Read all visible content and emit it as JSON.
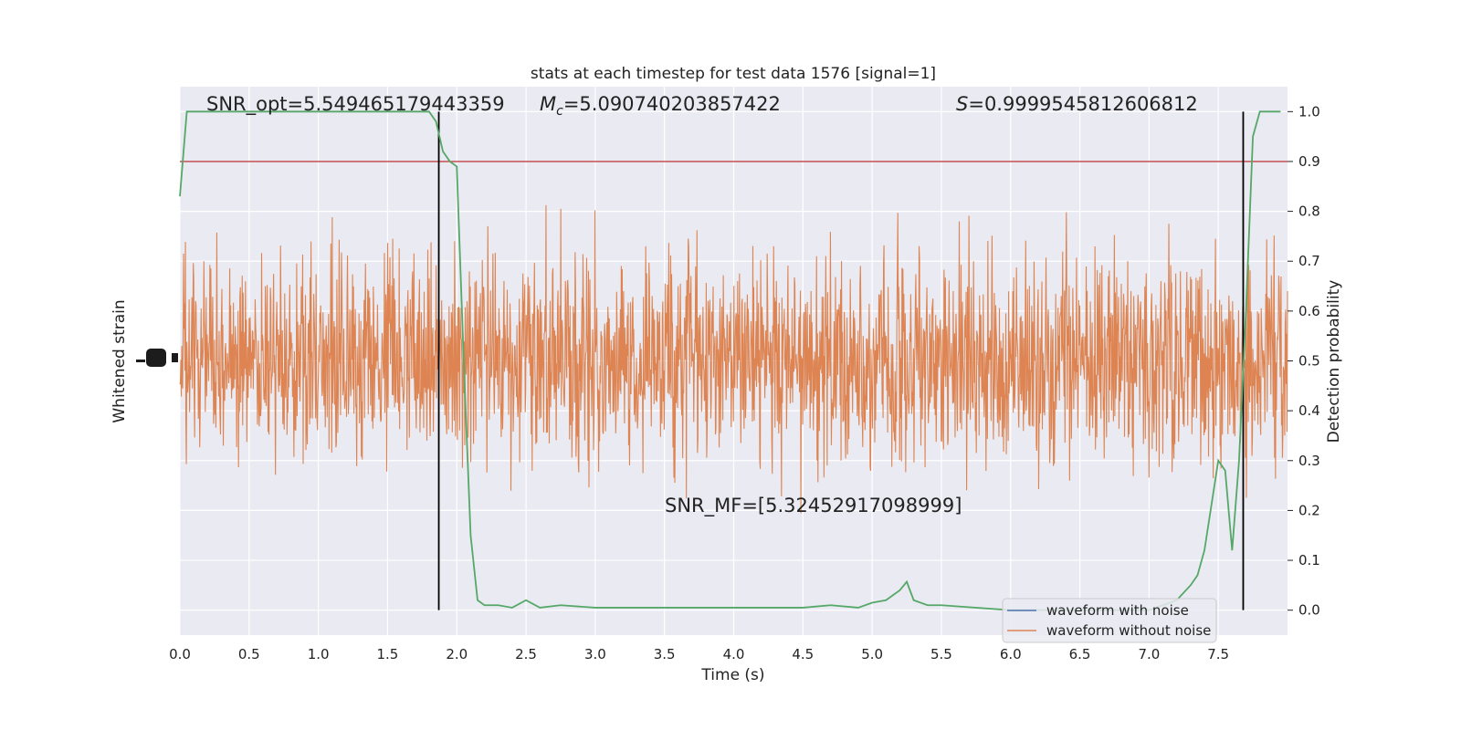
{
  "chart_data": {
    "type": "line",
    "title": "stats at each timestep for test data 1576 [signal=1]",
    "xlabel": "Time (s)",
    "ylabel_left": "Whitened strain",
    "ylabel_right": "Detection probability",
    "xlim": [
      0,
      8
    ],
    "ylim_right": [
      -0.05,
      1.05
    ],
    "x_ticks": [
      "0.0",
      "0.5",
      "1.0",
      "1.5",
      "2.0",
      "2.5",
      "3.0",
      "3.5",
      "4.0",
      "4.5",
      "5.0",
      "5.5",
      "6.0",
      "6.5",
      "7.0",
      "7.5"
    ],
    "y_ticks_right": [
      "0.0",
      "0.1",
      "0.2",
      "0.3",
      "0.4",
      "0.5",
      "0.6",
      "0.7",
      "0.8",
      "0.9",
      "1.0"
    ],
    "grid": true,
    "legend_position": "lower-right",
    "annotations": {
      "snr_opt": "SNR_opt=5.549465179443359",
      "mc_symbol": "M",
      "mc_sub": "c",
      "mc_value": "=5.090740203857422",
      "s_symbol": "S",
      "s_value": "=0.9999545812606812",
      "snr_mf": "SNR_MF=[5.32452917098999]"
    },
    "threshold": 0.9,
    "vertical_markers": [
      1.87,
      7.68
    ],
    "series": [
      {
        "name": "waveform with noise",
        "color": "#4c72b0"
      },
      {
        "name": "waveform without noise",
        "color": "#dd8452",
        "center": 0.5,
        "spread": 0.2
      },
      {
        "color": "#55a868",
        "x": [
          0.0,
          0.05,
          0.1,
          0.2,
          0.4,
          0.6,
          0.8,
          1.0,
          1.2,
          1.4,
          1.6,
          1.8,
          1.85,
          1.9,
          1.95,
          2.0,
          2.05,
          2.1,
          2.15,
          2.2,
          2.3,
          2.4,
          2.5,
          2.6,
          2.75,
          3.0,
          3.5,
          4.0,
          4.5,
          4.7,
          4.9,
          5.0,
          5.1,
          5.2,
          5.25,
          5.3,
          5.4,
          5.5,
          6.0,
          6.5,
          7.0,
          7.1,
          7.2,
          7.3,
          7.35,
          7.4,
          7.5,
          7.55,
          7.6,
          7.65,
          7.7,
          7.75,
          7.8,
          7.95
        ],
        "y": [
          0.83,
          1.0,
          1.0,
          1.0,
          1.0,
          1.0,
          1.0,
          1.0,
          1.0,
          1.0,
          1.0,
          1.0,
          0.98,
          0.92,
          0.9,
          0.89,
          0.5,
          0.15,
          0.02,
          0.01,
          0.01,
          0.005,
          0.02,
          0.005,
          0.01,
          0.005,
          0.005,
          0.005,
          0.005,
          0.01,
          0.005,
          0.015,
          0.02,
          0.04,
          0.057,
          0.02,
          0.01,
          0.01,
          0.0,
          0.0,
          0.0,
          0.01,
          0.02,
          0.05,
          0.07,
          0.12,
          0.3,
          0.28,
          0.12,
          0.3,
          0.6,
          0.95,
          1.0,
          1.0
        ]
      }
    ]
  }
}
